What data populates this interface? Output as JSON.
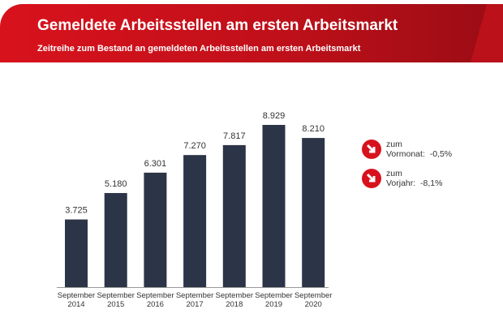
{
  "header": {
    "title": "Gemeldete Arbeitsstellen am ersten Arbeitsmarkt",
    "subtitle": "Zeitreihe zum Bestand an gemeldeten Arbeitsstellen am ersten Arbeitsmarkt"
  },
  "chart_data": {
    "type": "bar",
    "categories": [
      [
        "September",
        "2014"
      ],
      [
        "September",
        "2015"
      ],
      [
        "September",
        "2016"
      ],
      [
        "September",
        "2017"
      ],
      [
        "September",
        "2018"
      ],
      [
        "September",
        "2019"
      ],
      [
        "September",
        "2020"
      ]
    ],
    "values": [
      3725,
      5180,
      6301,
      7270,
      7817,
      8929,
      8210
    ],
    "labels": [
      "3.725",
      "5.180",
      "6.301",
      "7.270",
      "7.817",
      "8.929",
      "8.210"
    ],
    "ylim": [
      0,
      9000
    ],
    "grid": false,
    "bar_color": "#2c3447"
  },
  "indicators": [
    {
      "icon": "arrow-down-right-icon",
      "line1": "zum",
      "line2": "Vormonat:  -0,5%"
    },
    {
      "icon": "arrow-down-right-icon",
      "line1": "zum",
      "line2": "Vorjahr:  -8,1%"
    }
  ],
  "colors": {
    "brand": "#d8121c",
    "bar": "#2c3447"
  }
}
